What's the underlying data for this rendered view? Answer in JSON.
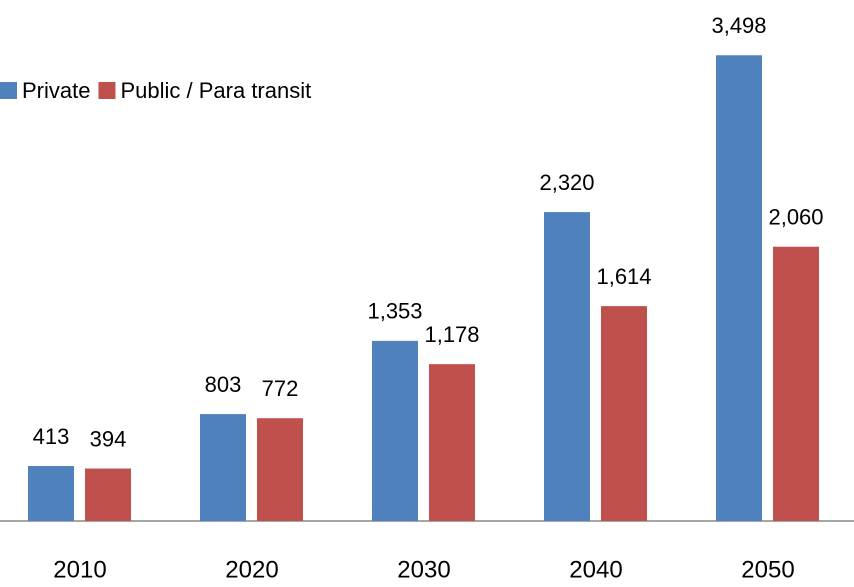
{
  "chart_data": {
    "type": "bar",
    "categories": [
      "2010",
      "2020",
      "2030",
      "2040",
      "2050"
    ],
    "series": [
      {
        "name": "Private",
        "color": "#4f81bd",
        "values": [
          413,
          803,
          1353,
          2320,
          3498
        ],
        "value_labels": [
          "413",
          "803",
          "1,353",
          "2,320",
          "3,498"
        ]
      },
      {
        "name": "Public / Para transit",
        "color": "#c0504d",
        "values": [
          394,
          772,
          1178,
          1614,
          2060
        ],
        "value_labels": [
          "394",
          "772",
          "1,178",
          "1,614",
          "2,060"
        ]
      }
    ],
    "ylim": [
      0,
      3500
    ],
    "legend": "top-left"
  }
}
